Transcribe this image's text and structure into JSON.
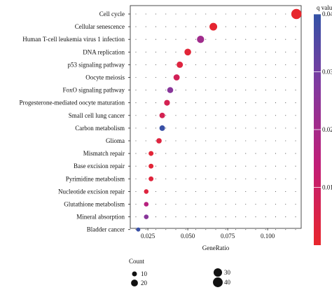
{
  "chart_data": {
    "type": "scatter",
    "title": "",
    "xlabel": "GeneRatio",
    "ylabel": "",
    "xlim": [
      0.014,
      0.121
    ],
    "xticks": [
      0.025,
      0.05,
      0.075,
      0.1
    ],
    "xtick_labels": [
      "0.025",
      "0.050",
      "0.075",
      "0.100"
    ],
    "grid": "dotted",
    "categories": [
      "Cell cycle",
      "Cellular senescence",
      "Human T-cell leukemia virus 1 infection",
      "DNA replication",
      "p53 signaling pathway",
      "Oocyte meiosis",
      "FoxO signaling pathway",
      "Progesterone-mediated oocyte maturation",
      "Small cell lung cancer",
      "Carbon metabolism",
      "Glioma",
      "Mismatch repair",
      "Base excision repair",
      "Pyrimidine metabolism",
      "Nucleotide excision repair",
      "Glutathione metabolism",
      "Mineral absorption",
      "Bladder cancer"
    ],
    "points": [
      {
        "category": "Cell cycle",
        "gene_ratio": 0.118,
        "count": 44,
        "q_value": 0.0002
      },
      {
        "category": "Cellular senescence",
        "gene_ratio": 0.066,
        "count": 25,
        "q_value": 0.001
      },
      {
        "category": "Human T-cell leukemia virus 1 infection",
        "gene_ratio": 0.058,
        "count": 22,
        "q_value": 0.021
      },
      {
        "category": "DNA replication",
        "gene_ratio": 0.05,
        "count": 19,
        "q_value": 0.002
      },
      {
        "category": "p53 signaling pathway",
        "gene_ratio": 0.045,
        "count": 17,
        "q_value": 0.0035
      },
      {
        "category": "Oocyte meiosis",
        "gene_ratio": 0.043,
        "count": 16,
        "q_value": 0.008
      },
      {
        "category": "FoxO signaling pathway",
        "gene_ratio": 0.039,
        "count": 15,
        "q_value": 0.026
      },
      {
        "category": "Progesterone-mediated oocyte maturation",
        "gene_ratio": 0.037,
        "count": 14,
        "q_value": 0.007
      },
      {
        "category": "Small cell lung cancer",
        "gene_ratio": 0.034,
        "count": 13,
        "q_value": 0.007
      },
      {
        "category": "Carbon metabolism",
        "gene_ratio": 0.034,
        "count": 13,
        "q_value": 0.039
      },
      {
        "category": "Glioma",
        "gene_ratio": 0.032,
        "count": 12,
        "q_value": 0.0035
      },
      {
        "category": "Mismatch repair",
        "gene_ratio": 0.027,
        "count": 10,
        "q_value": 0.002
      },
      {
        "category": "Base excision repair",
        "gene_ratio": 0.027,
        "count": 10,
        "q_value": 0.002
      },
      {
        "category": "Pyrimidine metabolism",
        "gene_ratio": 0.027,
        "count": 10,
        "q_value": 0.003
      },
      {
        "category": "Nucleotide excision repair",
        "gene_ratio": 0.024,
        "count": 9,
        "q_value": 0.0035
      },
      {
        "category": "Glutathione metabolism",
        "gene_ratio": 0.024,
        "count": 9,
        "q_value": 0.016
      },
      {
        "category": "Mineral absorption",
        "gene_ratio": 0.024,
        "count": 9,
        "q_value": 0.026
      },
      {
        "category": "Bladder cancer",
        "gene_ratio": 0.019,
        "count": 7,
        "q_value": 0.039
      }
    ],
    "color_legend": {
      "title": "q value",
      "min": 0.0,
      "max": 0.04,
      "ticks": [
        0.01,
        0.02,
        0.03,
        0.04
      ],
      "tick_labels": [
        "0.01",
        "0.02",
        "0.03",
        "0.04"
      ],
      "colors": [
        "#e8262c",
        "#c01d78",
        "#7f3aa0",
        "#3352a6"
      ]
    },
    "size_legend": {
      "title": "Count",
      "values": [
        10,
        20,
        30,
        40
      ],
      "labels": [
        "10",
        "20",
        "30",
        "40"
      ]
    }
  }
}
